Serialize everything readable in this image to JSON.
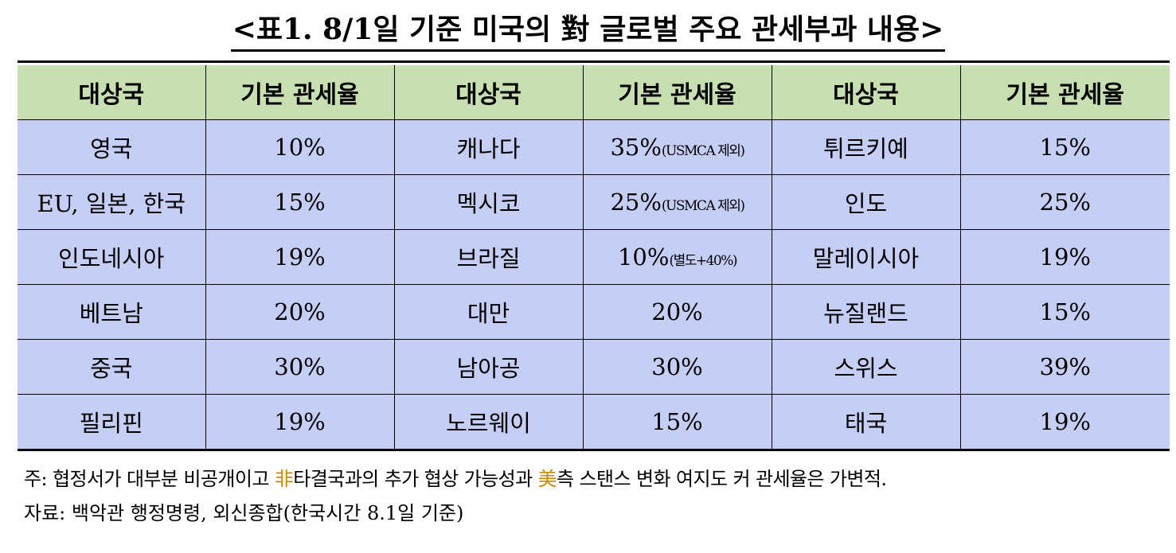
{
  "title": "<표1. 8/1일 기준 미국의 對 글로벌 주요 관세부과 내용>",
  "headers": [
    "대상국",
    "기본 관세율",
    "대상국",
    "기본 관세율",
    "대상국",
    "기본 관세율"
  ],
  "rows": [
    [
      {
        "country": "영국",
        "rate": "10%",
        "note": ""
      },
      {
        "country": "캐나다",
        "rate": "35%",
        "note": "(USMCA 제외)"
      },
      {
        "country": "튀르키예",
        "rate": "15%",
        "note": ""
      }
    ],
    [
      {
        "country": "EU, 일본, 한국",
        "rate": "15%",
        "note": ""
      },
      {
        "country": "멕시코",
        "rate": "25%",
        "note": "(USMCA 제외)"
      },
      {
        "country": "인도",
        "rate": "25%",
        "note": ""
      }
    ],
    [
      {
        "country": "인도네시아",
        "rate": "19%",
        "note": ""
      },
      {
        "country": "브라질",
        "rate": "10%",
        "note": "(별도+40%)"
      },
      {
        "country": "말레이시아",
        "rate": "19%",
        "note": ""
      }
    ],
    [
      {
        "country": "베트남",
        "rate": "20%",
        "note": ""
      },
      {
        "country": "대만",
        "rate": "20%",
        "note": ""
      },
      {
        "country": "뉴질랜드",
        "rate": "15%",
        "note": ""
      }
    ],
    [
      {
        "country": "중국",
        "rate": "30%",
        "note": ""
      },
      {
        "country": "남아공",
        "rate": "30%",
        "note": ""
      },
      {
        "country": "스위스",
        "rate": "39%",
        "note": ""
      }
    ],
    [
      {
        "country": "필리핀",
        "rate": "19%",
        "note": ""
      },
      {
        "country": "노르웨이",
        "rate": "15%",
        "note": ""
      },
      {
        "country": "태국",
        "rate": "19%",
        "note": ""
      }
    ]
  ],
  "footnote": {
    "part1": "주: 협정서가 대부분 비공개이고 ",
    "hanja1": "非",
    "part2": "타결국과의 추가 협상 가능성과 ",
    "hanja2": "美",
    "part3": "측 스탠스 변화 여지도 커 관세율은 가변적."
  },
  "source": "자료: 백악관 행정명령, 외신종합(한국시간 8.1일 기준)",
  "colors": {
    "header_bg": "#c7dfb1",
    "body_bg": "#c5cef4",
    "hanja": "#c98a00"
  }
}
